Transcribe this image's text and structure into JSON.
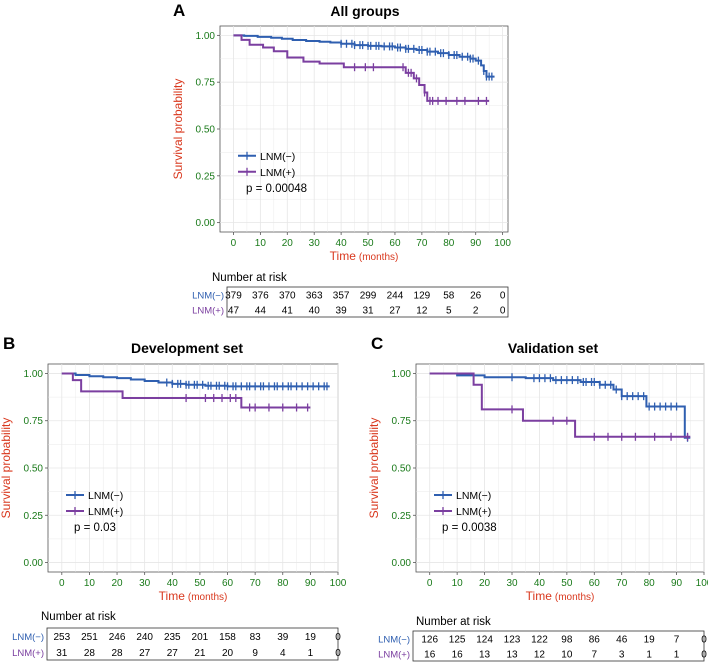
{
  "colors": {
    "lnm_neg": "#2f5fb0",
    "lnm_pos": "#7b3fa0",
    "axis_tick": "#1a7a1a",
    "axis_title": "#d9381e",
    "table_label_neg": "#2f5fb0",
    "table_label_pos": "#7b3fa0",
    "grid": "#e6e6e6",
    "text": "#000000"
  },
  "chart_data": [
    {
      "type": "line",
      "subtype": "kaplan-meier",
      "letter": "A",
      "title": "All groups",
      "xlabel_main": "Time",
      "xlabel_unit": "(months)",
      "ylabel": "Survival probability",
      "xlim": [
        -5,
        102
      ],
      "ylim": [
        -0.05,
        1.05
      ],
      "xticks": [
        0,
        10,
        20,
        30,
        40,
        50,
        60,
        70,
        80,
        90,
        100
      ],
      "yticks": [
        "0.00",
        "0.25",
        "0.50",
        "0.75",
        "1.00"
      ],
      "legend": [
        "LNM(−)",
        "LNM(+)"
      ],
      "legend_position": "left-middle",
      "pvalue": "p = 0.00048",
      "series": [
        {
          "name": "LNM(−)",
          "steps": [
            [
              0,
              1.0
            ],
            [
              4,
              0.997
            ],
            [
              9,
              0.992
            ],
            [
              14,
              0.987
            ],
            [
              18,
              0.982
            ],
            [
              22,
              0.975
            ],
            [
              27,
              0.97
            ],
            [
              32,
              0.966
            ],
            [
              36,
              0.962
            ],
            [
              40,
              0.955
            ],
            [
              45,
              0.948
            ],
            [
              50,
              0.944
            ],
            [
              55,
              0.941
            ],
            [
              60,
              0.935
            ],
            [
              64,
              0.928
            ],
            [
              68,
              0.922
            ],
            [
              72,
              0.913
            ],
            [
              76,
              0.905
            ],
            [
              80,
              0.895
            ],
            [
              84,
              0.886
            ],
            [
              88,
              0.876
            ],
            [
              90,
              0.865
            ],
            [
              92,
              0.84
            ],
            [
              93,
              0.81
            ],
            [
              94,
              0.78
            ],
            [
              97,
              0.78
            ]
          ],
          "censor": [
            40,
            42,
            44,
            45,
            47,
            48,
            50,
            51,
            53,
            54,
            56,
            58,
            59,
            61,
            62,
            64,
            65,
            67,
            69,
            70,
            72,
            73,
            75,
            77,
            78,
            80,
            82,
            83,
            85,
            87,
            88,
            89,
            91,
            93,
            94,
            95,
            96
          ]
        },
        {
          "name": "LNM(+)",
          "steps": [
            [
              0,
              1.0
            ],
            [
              3,
              0.976
            ],
            [
              6,
              0.95
            ],
            [
              11,
              0.935
            ],
            [
              15,
              0.915
            ],
            [
              20,
              0.882
            ],
            [
              26,
              0.86
            ],
            [
              32,
              0.85
            ],
            [
              41,
              0.83
            ],
            [
              52,
              0.83
            ],
            [
              53,
              0.83
            ],
            [
              57,
              0.83
            ],
            [
              64,
              0.8
            ],
            [
              67,
              0.77
            ],
            [
              69,
              0.735
            ],
            [
              71,
              0.695
            ],
            [
              72,
              0.65
            ],
            [
              95,
              0.65
            ]
          ],
          "censor": [
            45,
            49,
            52,
            63,
            65,
            66,
            68,
            71,
            73,
            74,
            76,
            79,
            83,
            86,
            91,
            94
          ]
        }
      ],
      "risk_table": {
        "label": "Number at risk",
        "rows": [
          {
            "name": "LNM(−)",
            "values": [
              "379",
              "376",
              "370",
              "363",
              "357",
              "299",
              "244",
              "129",
              "58",
              "26",
              "0"
            ]
          },
          {
            "name": "LNM(+)",
            "values": [
              "47",
              "44",
              "41",
              "40",
              "39",
              "31",
              "27",
              "12",
              "5",
              "2",
              "0"
            ]
          }
        ]
      }
    },
    {
      "type": "line",
      "subtype": "kaplan-meier",
      "letter": "B",
      "title": "Development set",
      "xlabel_main": "Time",
      "xlabel_unit": "(months)",
      "ylabel": "Survival probability",
      "xlim": [
        -5,
        100
      ],
      "ylim": [
        -0.05,
        1.05
      ],
      "xticks": [
        0,
        10,
        20,
        30,
        40,
        50,
        60,
        70,
        80,
        90,
        100
      ],
      "yticks": [
        "0.00",
        "0.25",
        "0.50",
        "0.75",
        "1.00"
      ],
      "legend": [
        "LNM(−)",
        "LNM(+)"
      ],
      "legend_position": "left-middle",
      "pvalue": "p = 0.03",
      "series": [
        {
          "name": "LNM(−)",
          "steps": [
            [
              0,
              1.0
            ],
            [
              5,
              0.992
            ],
            [
              10,
              0.985
            ],
            [
              15,
              0.98
            ],
            [
              20,
              0.975
            ],
            [
              25,
              0.968
            ],
            [
              30,
              0.96
            ],
            [
              35,
              0.952
            ],
            [
              40,
              0.945
            ],
            [
              45,
              0.94
            ],
            [
              52,
              0.935
            ],
            [
              60,
              0.932
            ],
            [
              97,
              0.932
            ]
          ],
          "censor": [
            38,
            40,
            42,
            43,
            45,
            46,
            48,
            49,
            51,
            53,
            54,
            56,
            57,
            59,
            60,
            62,
            63,
            65,
            67,
            68,
            70,
            72,
            73,
            75,
            77,
            78,
            80,
            82,
            83,
            85,
            87,
            89,
            91,
            93,
            95,
            96
          ]
        },
        {
          "name": "LNM(+)",
          "steps": [
            [
              0,
              1.0
            ],
            [
              4,
              0.965
            ],
            [
              7,
              0.905
            ],
            [
              22,
              0.87
            ],
            [
              65,
              0.82
            ],
            [
              90,
              0.82
            ]
          ],
          "censor": [
            45,
            52,
            55,
            58,
            61,
            63,
            68,
            70,
            75,
            80,
            85,
            89
          ]
        }
      ],
      "risk_table": {
        "label": "Number at risk",
        "rows": [
          {
            "name": "LNM(−)",
            "values": [
              "253",
              "251",
              "246",
              "240",
              "235",
              "201",
              "158",
              "83",
              "39",
              "19",
              "0"
            ]
          },
          {
            "name": "LNM(+)",
            "values": [
              "31",
              "28",
              "28",
              "27",
              "27",
              "21",
              "20",
              "9",
              "4",
              "1",
              "0"
            ]
          }
        ]
      }
    },
    {
      "type": "line",
      "subtype": "kaplan-meier",
      "letter": "C",
      "title": "Validation set",
      "xlabel_main": "Time",
      "xlabel_unit": "(months)",
      "ylabel": "Survival probability",
      "xlim": [
        -5,
        100
      ],
      "ylim": [
        -0.05,
        1.05
      ],
      "xticks": [
        0,
        10,
        20,
        30,
        40,
        50,
        60,
        70,
        80,
        90,
        100
      ],
      "yticks": [
        "0.00",
        "0.25",
        "0.50",
        "0.75",
        "1.00"
      ],
      "legend": [
        "LNM(−)",
        "LNM(+)"
      ],
      "legend_position": "left-middle",
      "pvalue": "p = 0.0038",
      "series": [
        {
          "name": "LNM(−)",
          "steps": [
            [
              0,
              1.0
            ],
            [
              10,
              0.99
            ],
            [
              20,
              0.98
            ],
            [
              35,
              0.975
            ],
            [
              45,
              0.965
            ],
            [
              55,
              0.955
            ],
            [
              62,
              0.94
            ],
            [
              67,
              0.915
            ],
            [
              70,
              0.88
            ],
            [
              79,
              0.825
            ],
            [
              92,
              0.825
            ],
            [
              93,
              0.66
            ],
            [
              95,
              0.66
            ]
          ],
          "censor": [
            30,
            38,
            40,
            42,
            44,
            46,
            48,
            50,
            52,
            54,
            56,
            57,
            59,
            60,
            62,
            64,
            66,
            68,
            70,
            72,
            74,
            76,
            78,
            80,
            82,
            84,
            86,
            88,
            90,
            94
          ]
        },
        {
          "name": "LNM(+)",
          "steps": [
            [
              0,
              1.0
            ],
            [
              16,
              0.94
            ],
            [
              19,
              0.81
            ],
            [
              34,
              0.75
            ],
            [
              53,
              0.665
            ],
            [
              95,
              0.665
            ]
          ],
          "censor": [
            30,
            45,
            50,
            60,
            65,
            70,
            75,
            82,
            88,
            94
          ]
        }
      ],
      "risk_table": {
        "label": "Number at risk",
        "rows": [
          {
            "name": "LNM(−)",
            "values": [
              "126",
              "125",
              "124",
              "123",
              "122",
              "98",
              "86",
              "46",
              "19",
              "7",
              "0"
            ]
          },
          {
            "name": "LNM(+)",
            "values": [
              "16",
              "16",
              "13",
              "13",
              "12",
              "10",
              "7",
              "3",
              "1",
              "1",
              "0"
            ]
          }
        ]
      }
    }
  ]
}
